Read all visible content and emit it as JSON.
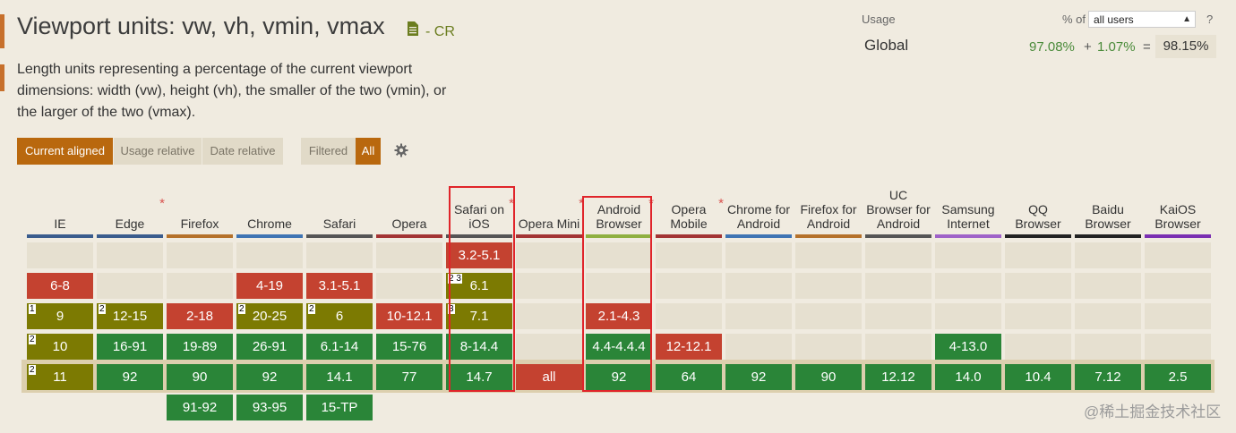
{
  "feature": {
    "title": "Viewport units: vw, vh, vmin, vmax",
    "status": "- CR",
    "description": "Length units representing a percentage of the current viewport dimensions: width (vw), height (vh), the smaller of the two (vmin), or the larger of the two (vmax)."
  },
  "controls": {
    "current_aligned": "Current aligned",
    "usage_relative": "Usage relative",
    "date_relative": "Date relative",
    "filtered": "Filtered",
    "all": "All"
  },
  "usage": {
    "label": "Usage",
    "pct_of": "% of",
    "selected": "all users",
    "help": "?",
    "region": "Global",
    "supported": "97.08%",
    "plus": "+",
    "partial": "1.07%",
    "equals": "=",
    "total": "98.15%"
  },
  "colors": {
    "supported": "#2a8538",
    "unsupported": "#c44230",
    "partial": "#7c7a02",
    "accent": "#b9680e",
    "highlight": "#e0242a"
  },
  "browsers": [
    {
      "name": "IE",
      "star": false,
      "line": "#3a5c8d",
      "cells": [
        {
          "row": 1,
          "text": "6-8",
          "s": "n"
        },
        {
          "row": 2,
          "text": "9",
          "s": "a",
          "note": "1"
        },
        {
          "row": 3,
          "text": "10",
          "s": "a",
          "note": "2"
        },
        {
          "row": 4,
          "text": "11",
          "s": "a",
          "note": "2"
        }
      ]
    },
    {
      "name": "Edge",
      "star": true,
      "line": "#3a5c8d",
      "cells": [
        {
          "row": 2,
          "text": "12-15",
          "s": "a",
          "note": "2"
        },
        {
          "row": 3,
          "text": "16-91",
          "s": "y"
        },
        {
          "row": 4,
          "text": "92",
          "s": "y"
        }
      ]
    },
    {
      "name": "Firefox",
      "star": false,
      "line": "#b5712a",
      "cells": [
        {
          "row": 2,
          "text": "2-18",
          "s": "n"
        },
        {
          "row": 3,
          "text": "19-89",
          "s": "y"
        },
        {
          "row": 4,
          "text": "90",
          "s": "y"
        },
        {
          "row": 5,
          "text": "91-92",
          "s": "y"
        }
      ]
    },
    {
      "name": "Chrome",
      "star": false,
      "line": "#3f74b3",
      "cells": [
        {
          "row": 1,
          "text": "4-19",
          "s": "n"
        },
        {
          "row": 2,
          "text": "20-25",
          "s": "a",
          "note": "2"
        },
        {
          "row": 3,
          "text": "26-91",
          "s": "y"
        },
        {
          "row": 4,
          "text": "92",
          "s": "y"
        },
        {
          "row": 5,
          "text": "93-95",
          "s": "y"
        }
      ]
    },
    {
      "name": "Safari",
      "star": false,
      "line": "#555555",
      "cells": [
        {
          "row": 1,
          "text": "3.1-5.1",
          "s": "n"
        },
        {
          "row": 2,
          "text": "6",
          "s": "a",
          "note": "2"
        },
        {
          "row": 3,
          "text": "6.1-14",
          "s": "y"
        },
        {
          "row": 4,
          "text": "14.1",
          "s": "y"
        },
        {
          "row": 5,
          "text": "15-TP",
          "s": "y"
        }
      ]
    },
    {
      "name": "Opera",
      "star": false,
      "line": "#a33434",
      "cells": [
        {
          "row": 2,
          "text": "10-12.1",
          "s": "n"
        },
        {
          "row": 3,
          "text": "15-76",
          "s": "y"
        },
        {
          "row": 4,
          "text": "77",
          "s": "y"
        }
      ]
    },
    {
      "name": "Safari on iOS",
      "star": true,
      "line": "#555555",
      "cells": [
        {
          "row": 0,
          "text": "3.2-5.1",
          "s": "n"
        },
        {
          "row": 1,
          "text": "6.1",
          "s": "a",
          "note": "2 3"
        },
        {
          "row": 2,
          "text": "7.1",
          "s": "a",
          "note": "3"
        },
        {
          "row": 3,
          "text": "8-14.4",
          "s": "y"
        },
        {
          "row": 4,
          "text": "14.7",
          "s": "y"
        }
      ]
    },
    {
      "name": "Opera Mini",
      "star": true,
      "line": "#a33434",
      "cells": [
        {
          "row": 4,
          "text": "all",
          "s": "n"
        }
      ]
    },
    {
      "name": "Android Browser",
      "star": true,
      "line": "#8fb040",
      "cells": [
        {
          "row": 2,
          "text": "2.1-4.3",
          "s": "n"
        },
        {
          "row": 3,
          "text": "4.4-4.4.4",
          "s": "y"
        },
        {
          "row": 4,
          "text": "92",
          "s": "y"
        }
      ]
    },
    {
      "name": "Opera Mobile",
      "star": true,
      "line": "#a33434",
      "cells": [
        {
          "row": 3,
          "text": "12-12.1",
          "s": "n"
        },
        {
          "row": 4,
          "text": "64",
          "s": "y"
        }
      ]
    },
    {
      "name": "Chrome for Android",
      "star": false,
      "line": "#3f74b3",
      "cells": [
        {
          "row": 4,
          "text": "92",
          "s": "y"
        }
      ]
    },
    {
      "name": "Firefox for Android",
      "star": false,
      "line": "#b5712a",
      "cells": [
        {
          "row": 4,
          "text": "90",
          "s": "y"
        }
      ]
    },
    {
      "name": "UC Browser for Android",
      "star": false,
      "line": "#555555",
      "cells": [
        {
          "row": 4,
          "text": "12.12",
          "s": "y"
        }
      ]
    },
    {
      "name": "Samsung Internet",
      "star": false,
      "line": "#9f62c8",
      "cells": [
        {
          "row": 3,
          "text": "4-13.0",
          "s": "y"
        },
        {
          "row": 4,
          "text": "14.0",
          "s": "y"
        }
      ]
    },
    {
      "name": "QQ Browser",
      "star": false,
      "line": "#222222",
      "cells": [
        {
          "row": 4,
          "text": "10.4",
          "s": "y"
        }
      ]
    },
    {
      "name": "Baidu Browser",
      "star": false,
      "line": "#222222",
      "cells": [
        {
          "row": 4,
          "text": "7.12",
          "s": "y"
        }
      ]
    },
    {
      "name": "KaiOS Browser",
      "star": false,
      "line": "#7b2fb2",
      "cells": [
        {
          "row": 4,
          "text": "2.5",
          "s": "y"
        }
      ]
    }
  ],
  "watermark": "@稀土掘金技术社区"
}
